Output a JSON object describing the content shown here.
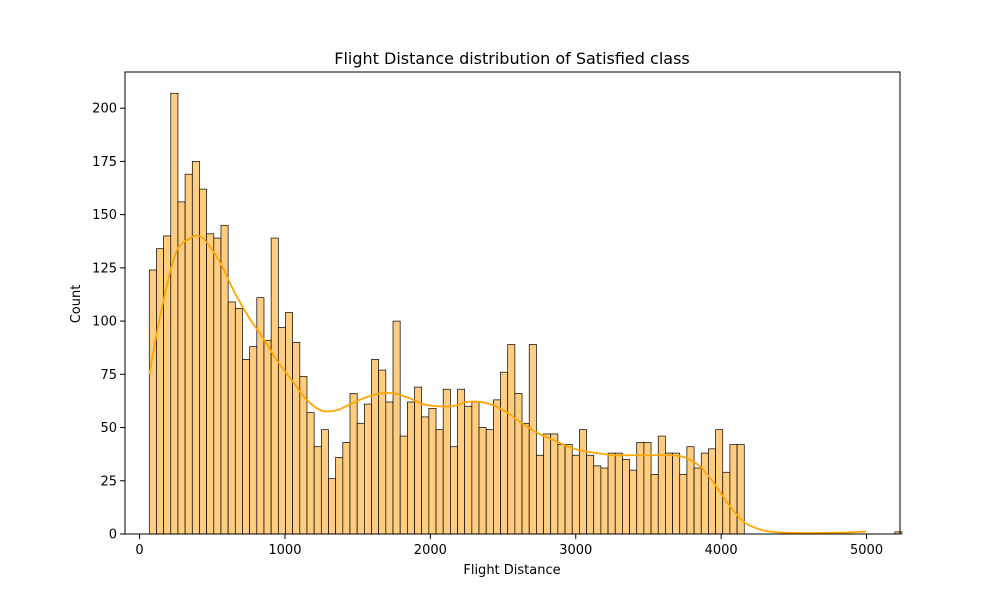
{
  "chart_data": {
    "type": "bar",
    "title": "Flight Distance distribution of Satisfied class",
    "xlabel": "Flight Distance",
    "ylabel": "Count",
    "xlim": [
      -100,
      5230
    ],
    "ylim": [
      0,
      217
    ],
    "x_ticks": [
      0,
      1000,
      2000,
      3000,
      4000,
      5000
    ],
    "x_tick_labels": [
      "0",
      "1000",
      "2000",
      "3000",
      "4000",
      "5000"
    ],
    "y_ticks": [
      0,
      25,
      50,
      75,
      100,
      125,
      150,
      175,
      200
    ],
    "y_tick_labels": [
      "0",
      "25",
      "50",
      "75",
      "100",
      "125",
      "150",
      "175",
      "200"
    ],
    "grid": false,
    "bin_start": 67,
    "bin_width": 49.3,
    "counts": [
      124,
      134,
      140,
      207,
      156,
      169,
      175,
      162,
      141,
      139,
      145,
      109,
      106,
      82,
      88,
      111,
      91,
      139,
      97,
      104,
      90,
      74,
      57,
      41,
      49,
      26,
      36,
      43,
      66,
      52,
      61,
      82,
      77,
      62,
      100,
      46,
      62,
      69,
      55,
      59,
      49,
      68,
      41,
      68,
      60,
      62,
      50,
      49,
      63,
      76,
      89,
      66,
      52,
      89,
      37,
      47,
      47,
      42,
      42,
      37,
      49,
      37,
      32,
      31,
      38,
      38,
      35,
      30,
      43,
      43,
      28,
      46,
      38,
      38,
      28,
      41,
      31,
      38,
      40,
      49,
      29,
      42,
      42,
      0,
      0,
      0,
      0,
      0,
      0,
      0,
      0,
      0,
      0,
      0,
      0,
      0,
      0,
      0,
      0,
      0,
      0,
      0,
      0,
      0,
      1,
      0,
      0,
      0,
      0,
      0,
      0,
      0,
      0,
      0,
      0,
      0,
      0,
      0,
      0,
      0,
      0,
      0,
      0,
      0,
      1,
      0,
      0,
      0,
      2
    ],
    "kde": {
      "x": [
        67,
        150,
        250,
        350,
        400,
        450,
        550,
        650,
        750,
        850,
        950,
        1050,
        1150,
        1250,
        1350,
        1450,
        1550,
        1650,
        1750,
        1850,
        1950,
        2050,
        2150,
        2250,
        2350,
        2450,
        2550,
        2650,
        2750,
        2850,
        2950,
        3050,
        3150,
        3250,
        3350,
        3450,
        3550,
        3650,
        3750,
        3850,
        3950,
        4050,
        4150,
        4250,
        4350,
        4500,
        4700,
        4900,
        4998
      ],
      "y": [
        75,
        105,
        132,
        139,
        140,
        138,
        128,
        114,
        102,
        92,
        81,
        72,
        63,
        58,
        58,
        61,
        64,
        66,
        66,
        64,
        61,
        60,
        60,
        62,
        62,
        60,
        56,
        51,
        47,
        44,
        41,
        39,
        38,
        37,
        37,
        37,
        37,
        37,
        36,
        32,
        24,
        14,
        6,
        2.5,
        1,
        0.5,
        0.5,
        0.8,
        1.2
      ]
    },
    "colors": {
      "bar_fill": "#ffcd7f",
      "bar_edge": "#000000",
      "kde_line": "#ffa500"
    }
  }
}
